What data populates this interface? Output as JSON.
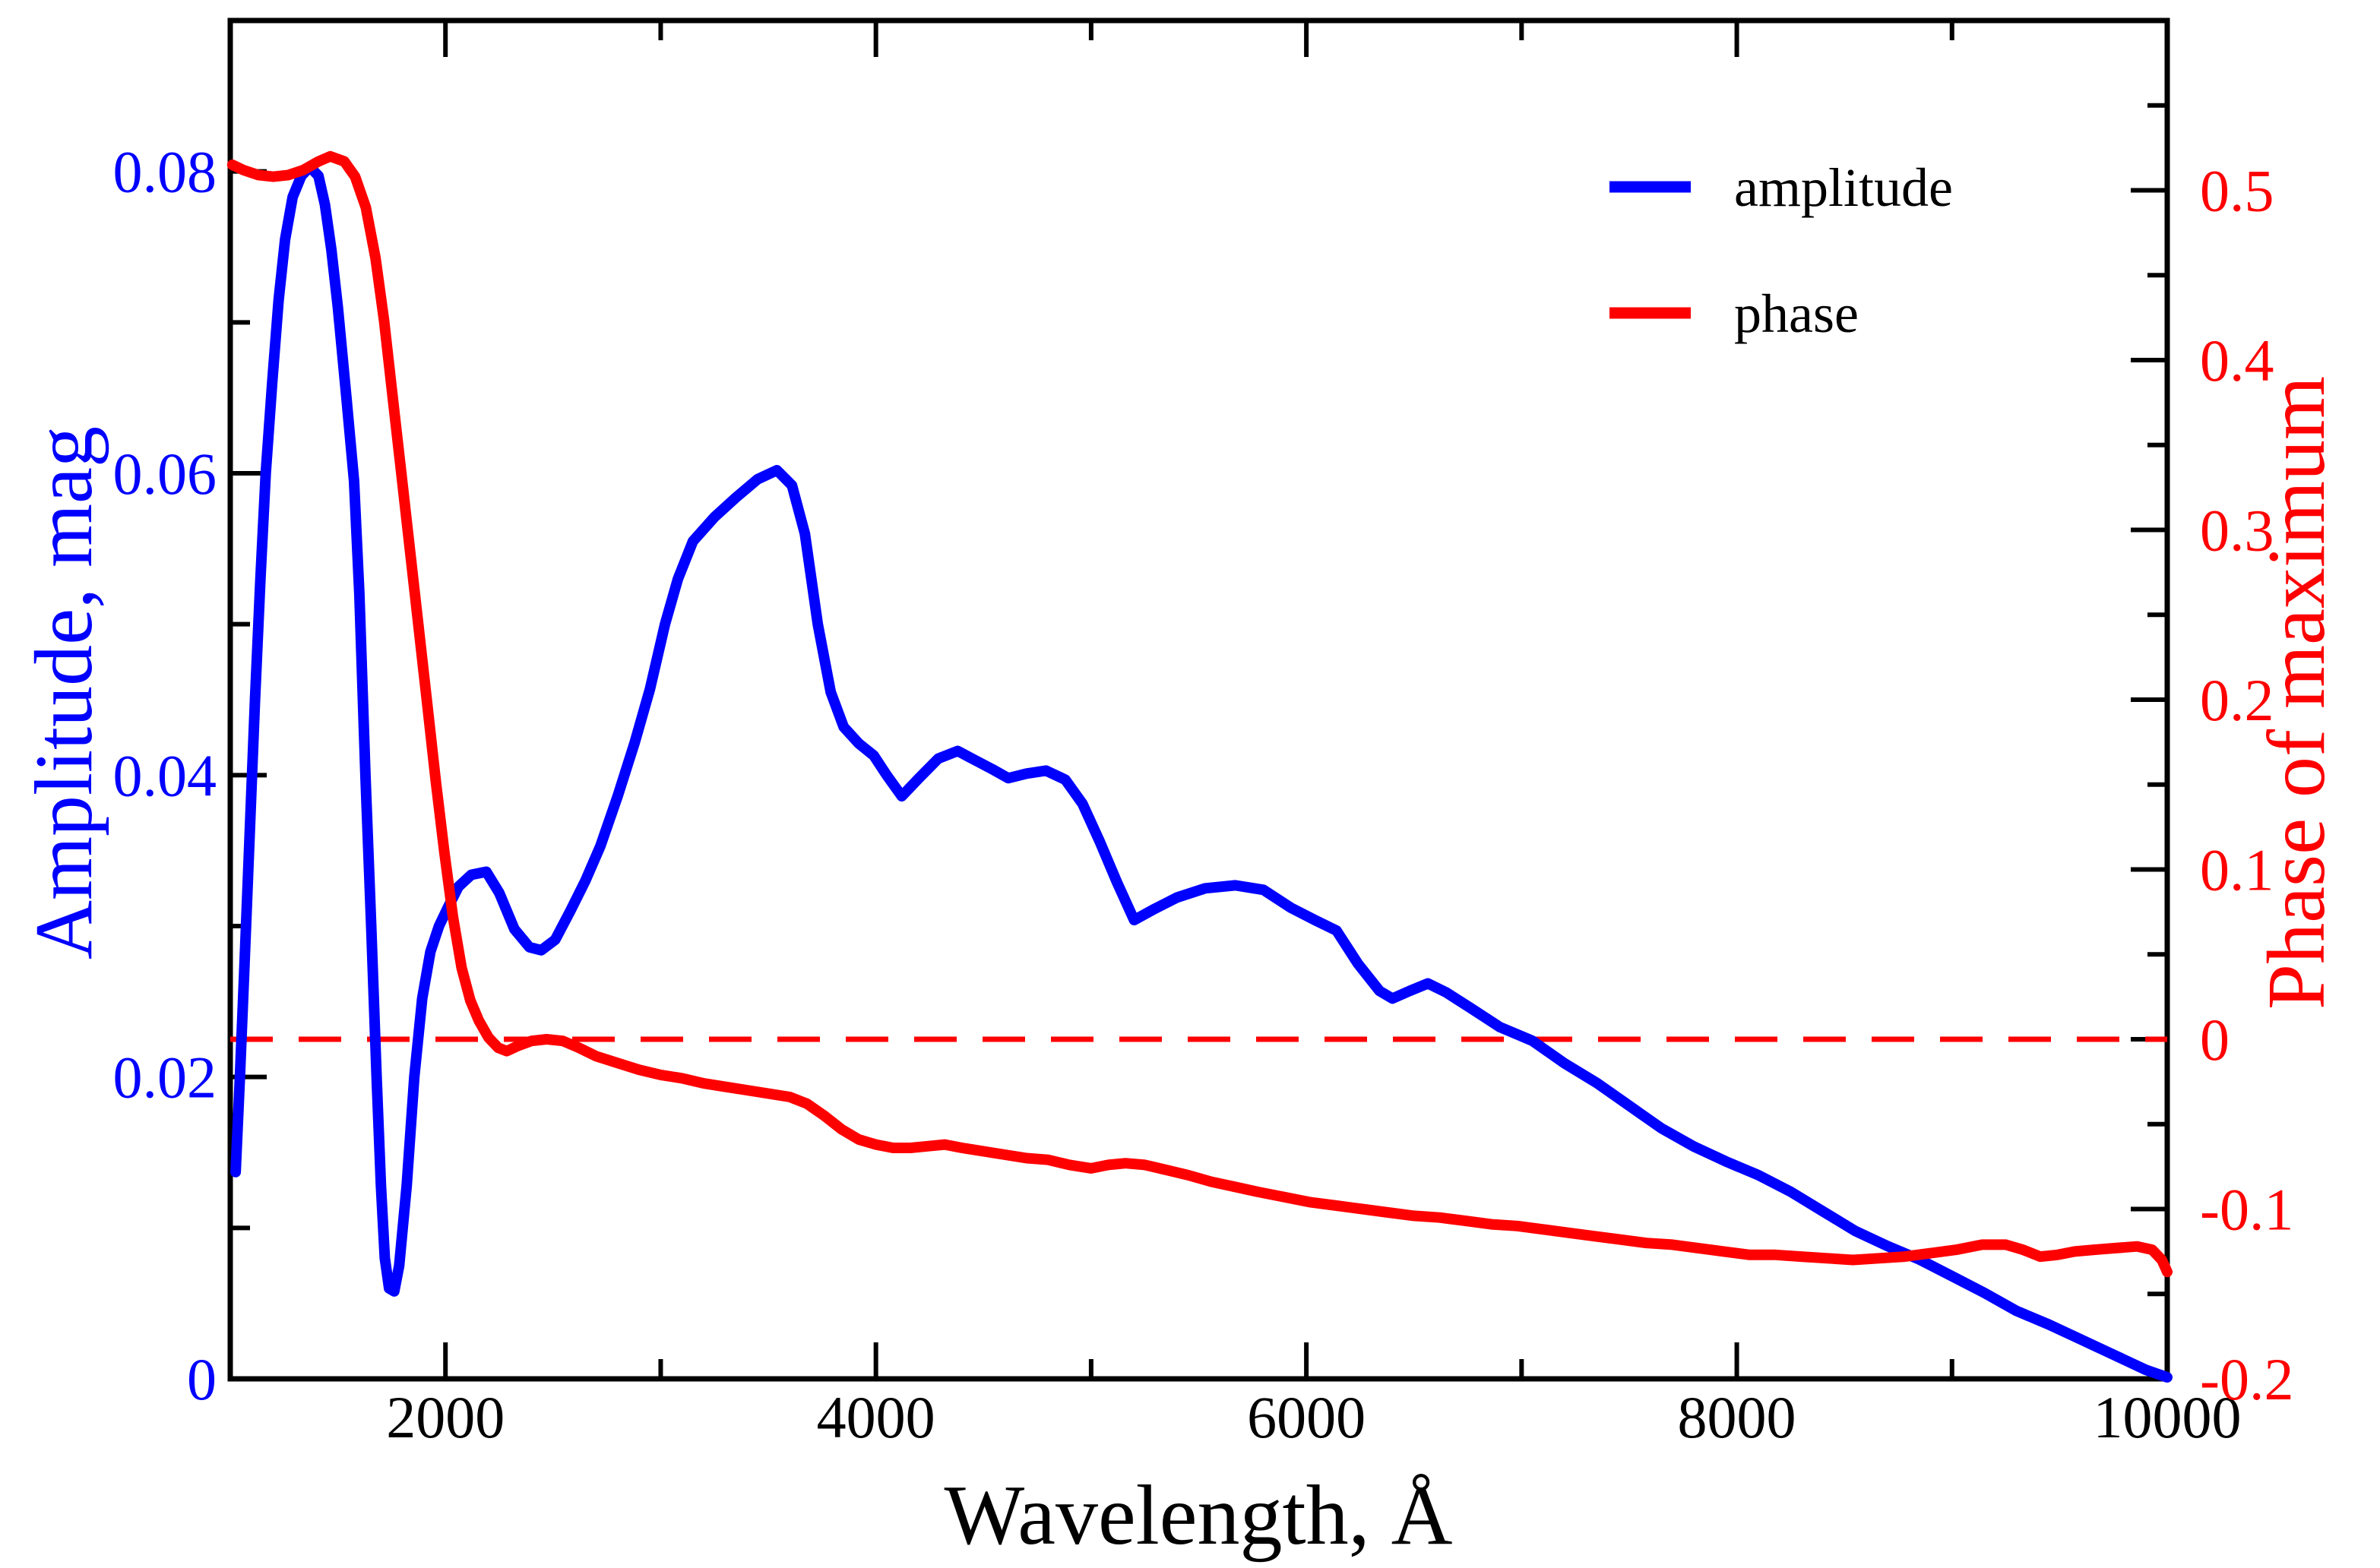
{
  "figure": {
    "background": "#ffffff",
    "frame_color": "#000000"
  },
  "legend": {
    "items": [
      {
        "label": "amplitude",
        "color": "#0000ff"
      },
      {
        "label": "phase",
        "color": "#ff0000"
      }
    ]
  },
  "chart_data": {
    "type": "line",
    "title": "",
    "xlabel": "Wavelength, Å",
    "ylabel_left": "Amplitude, mag",
    "ylabel_right": "Phase of maximum",
    "x_axis": {
      "range": [
        1000,
        10000
      ],
      "major_ticks": [
        2000,
        4000,
        6000,
        8000,
        10000
      ],
      "minor_ticks": [
        3000,
        5000,
        7000,
        9000
      ],
      "tick_labels": [
        "2000",
        "4000",
        "6000",
        "8000",
        "10000"
      ],
      "color": "#000000"
    },
    "y_axis_left": {
      "range": [
        0,
        0.09
      ],
      "major_ticks": [
        0,
        0.02,
        0.04,
        0.06,
        0.08
      ],
      "minor_ticks": [
        0.01,
        0.03,
        0.05,
        0.07
      ],
      "tick_labels": [
        "0",
        "0.02",
        "0.04",
        "0.06",
        "0.08"
      ],
      "color": "#0000ff"
    },
    "y_axis_right": {
      "range": [
        -0.2,
        0.6
      ],
      "major_ticks": [
        -0.2,
        -0.1,
        0,
        0.1,
        0.2,
        0.3,
        0.4,
        0.5
      ],
      "minor_ticks": [
        -0.15,
        -0.05,
        0.05,
        0.15,
        0.25,
        0.35,
        0.45,
        0.55
      ],
      "tick_labels": [
        "-0.2",
        "-0.1",
        "0",
        "0.1",
        "0.2",
        "0.3",
        "0.4",
        "0.5"
      ],
      "color": "#ff0000"
    },
    "reference_line": {
      "axis": "right",
      "value": 0,
      "style": "dashed",
      "color": "#ff0000"
    },
    "series": [
      {
        "name": "amplitude",
        "axis": "left",
        "color": "#0000ff",
        "points": [
          [
            1025,
            0.0137
          ],
          [
            1045,
            0.02
          ],
          [
            1065,
            0.027
          ],
          [
            1090,
            0.036
          ],
          [
            1115,
            0.045
          ],
          [
            1140,
            0.053
          ],
          [
            1165,
            0.06
          ],
          [
            1195,
            0.066
          ],
          [
            1225,
            0.0715
          ],
          [
            1255,
            0.0755
          ],
          [
            1290,
            0.0783
          ],
          [
            1330,
            0.0797
          ],
          [
            1370,
            0.0803
          ],
          [
            1410,
            0.0797
          ],
          [
            1440,
            0.0778
          ],
          [
            1470,
            0.0748
          ],
          [
            1500,
            0.071
          ],
          [
            1540,
            0.065
          ],
          [
            1575,
            0.0595
          ],
          [
            1600,
            0.052
          ],
          [
            1628,
            0.04
          ],
          [
            1655,
            0.03
          ],
          [
            1680,
            0.02
          ],
          [
            1700,
            0.0128
          ],
          [
            1718,
            0.008
          ],
          [
            1738,
            0.006
          ],
          [
            1762,
            0.0058
          ],
          [
            1785,
            0.0075
          ],
          [
            1820,
            0.0128
          ],
          [
            1855,
            0.02
          ],
          [
            1892,
            0.0252
          ],
          [
            1930,
            0.0283
          ],
          [
            1970,
            0.03
          ],
          [
            2010,
            0.0312
          ],
          [
            2060,
            0.0326
          ],
          [
            2120,
            0.0334
          ],
          [
            2190,
            0.0336
          ],
          [
            2250,
            0.0322
          ],
          [
            2320,
            0.0298
          ],
          [
            2390,
            0.0286
          ],
          [
            2445,
            0.0284
          ],
          [
            2510,
            0.0291
          ],
          [
            2580,
            0.031
          ],
          [
            2650,
            0.033
          ],
          [
            2720,
            0.0353
          ],
          [
            2800,
            0.0386
          ],
          [
            2880,
            0.0422
          ],
          [
            2950,
            0.0457
          ],
          [
            3020,
            0.05
          ],
          [
            3080,
            0.053
          ],
          [
            3150,
            0.0555
          ],
          [
            3250,
            0.0571
          ],
          [
            3350,
            0.0584
          ],
          [
            3450,
            0.0596
          ],
          [
            3540,
            0.0602
          ],
          [
            3610,
            0.0592
          ],
          [
            3670,
            0.056
          ],
          [
            3730,
            0.05
          ],
          [
            3790,
            0.0455
          ],
          [
            3850,
            0.0432
          ],
          [
            3920,
            0.0421
          ],
          [
            3990,
            0.0413
          ],
          [
            4050,
            0.04
          ],
          [
            4120,
            0.0386
          ],
          [
            4200,
            0.0398
          ],
          [
            4290,
            0.0411
          ],
          [
            4380,
            0.0416
          ],
          [
            4460,
            0.041
          ],
          [
            4540,
            0.0404
          ],
          [
            4615,
            0.0398
          ],
          [
            4700,
            0.0401
          ],
          [
            4790,
            0.0403
          ],
          [
            4880,
            0.0397
          ],
          [
            4960,
            0.0381
          ],
          [
            5040,
            0.0356
          ],
          [
            5120,
            0.0329
          ],
          [
            5200,
            0.0304
          ],
          [
            5290,
            0.0311
          ],
          [
            5400,
            0.0319
          ],
          [
            5530,
            0.0325
          ],
          [
            5670,
            0.0327
          ],
          [
            5800,
            0.0324
          ],
          [
            5930,
            0.0312
          ],
          [
            6040,
            0.0304
          ],
          [
            6140,
            0.0297
          ],
          [
            6240,
            0.0275
          ],
          [
            6340,
            0.0257
          ],
          [
            6400,
            0.0252
          ],
          [
            6480,
            0.0257
          ],
          [
            6565,
            0.0262
          ],
          [
            6650,
            0.0256
          ],
          [
            6760,
            0.0246
          ],
          [
            6900,
            0.0233
          ],
          [
            7050,
            0.0224
          ],
          [
            7200,
            0.0209
          ],
          [
            7350,
            0.0196
          ],
          [
            7500,
            0.0181
          ],
          [
            7650,
            0.0166
          ],
          [
            7800,
            0.0154
          ],
          [
            7950,
            0.0144
          ],
          [
            8100,
            0.0135
          ],
          [
            8250,
            0.0124
          ],
          [
            8400,
            0.0111
          ],
          [
            8550,
            0.0098
          ],
          [
            8700,
            0.0088
          ],
          [
            8850,
            0.0079
          ],
          [
            9000,
            0.0068
          ],
          [
            9150,
            0.0057
          ],
          [
            9300,
            0.0045
          ],
          [
            9450,
            0.0036
          ],
          [
            9600,
            0.0026
          ],
          [
            9750,
            0.0016
          ],
          [
            9900,
            0.0006
          ],
          [
            10000,
            0.0001
          ]
        ]
      },
      {
        "name": "phase",
        "axis": "right",
        "color": "#ff0000",
        "points": [
          [
            1010,
            0.515
          ],
          [
            1060,
            0.512
          ],
          [
            1130,
            0.509
          ],
          [
            1200,
            0.508
          ],
          [
            1270,
            0.509
          ],
          [
            1340,
            0.512
          ],
          [
            1410,
            0.517
          ],
          [
            1465,
            0.52
          ],
          [
            1530,
            0.517
          ],
          [
            1580,
            0.508
          ],
          [
            1630,
            0.49
          ],
          [
            1675,
            0.46
          ],
          [
            1715,
            0.423
          ],
          [
            1755,
            0.378
          ],
          [
            1795,
            0.333
          ],
          [
            1835,
            0.288
          ],
          [
            1875,
            0.243
          ],
          [
            1915,
            0.198
          ],
          [
            1955,
            0.152
          ],
          [
            1995,
            0.11
          ],
          [
            2035,
            0.072
          ],
          [
            2075,
            0.042
          ],
          [
            2115,
            0.023
          ],
          [
            2155,
            0.011
          ],
          [
            2200,
            0.001
          ],
          [
            2245,
            -0.005
          ],
          [
            2285,
            -0.007
          ],
          [
            2335,
            -0.004
          ],
          [
            2400,
            -0.001
          ],
          [
            2470,
            0.0
          ],
          [
            2545,
            -0.001
          ],
          [
            2620,
            -0.005
          ],
          [
            2700,
            -0.01
          ],
          [
            2800,
            -0.014
          ],
          [
            2900,
            -0.018
          ],
          [
            3000,
            -0.021
          ],
          [
            3100,
            -0.023
          ],
          [
            3200,
            -0.026
          ],
          [
            3300,
            -0.028
          ],
          [
            3400,
            -0.03
          ],
          [
            3500,
            -0.032
          ],
          [
            3600,
            -0.034
          ],
          [
            3680,
            -0.038
          ],
          [
            3760,
            -0.045
          ],
          [
            3840,
            -0.053
          ],
          [
            3920,
            -0.059
          ],
          [
            4000,
            -0.062
          ],
          [
            4080,
            -0.064
          ],
          [
            4160,
            -0.064
          ],
          [
            4240,
            -0.063
          ],
          [
            4320,
            -0.062
          ],
          [
            4400,
            -0.064
          ],
          [
            4500,
            -0.066
          ],
          [
            4600,
            -0.068
          ],
          [
            4700,
            -0.07
          ],
          [
            4800,
            -0.071
          ],
          [
            4900,
            -0.074
          ],
          [
            5000,
            -0.076
          ],
          [
            5080,
            -0.074
          ],
          [
            5160,
            -0.073
          ],
          [
            5250,
            -0.074
          ],
          [
            5350,
            -0.077
          ],
          [
            5450,
            -0.08
          ],
          [
            5560,
            -0.084
          ],
          [
            5670,
            -0.087
          ],
          [
            5780,
            -0.09
          ],
          [
            5900,
            -0.093
          ],
          [
            6020,
            -0.096
          ],
          [
            6140,
            -0.098
          ],
          [
            6260,
            -0.1
          ],
          [
            6380,
            -0.102
          ],
          [
            6500,
            -0.104
          ],
          [
            6620,
            -0.105
          ],
          [
            6740,
            -0.107
          ],
          [
            6860,
            -0.109
          ],
          [
            6980,
            -0.11
          ],
          [
            7100,
            -0.112
          ],
          [
            7220,
            -0.114
          ],
          [
            7340,
            -0.116
          ],
          [
            7460,
            -0.118
          ],
          [
            7580,
            -0.12
          ],
          [
            7700,
            -0.121
          ],
          [
            7820,
            -0.123
          ],
          [
            7940,
            -0.125
          ],
          [
            8060,
            -0.127
          ],
          [
            8180,
            -0.127
          ],
          [
            8300,
            -0.128
          ],
          [
            8420,
            -0.129
          ],
          [
            8540,
            -0.13
          ],
          [
            8660,
            -0.129
          ],
          [
            8780,
            -0.128
          ],
          [
            8900,
            -0.126
          ],
          [
            9020,
            -0.124
          ],
          [
            9140,
            -0.121
          ],
          [
            9250,
            -0.121
          ],
          [
            9330,
            -0.124
          ],
          [
            9410,
            -0.128
          ],
          [
            9490,
            -0.127
          ],
          [
            9570,
            -0.125
          ],
          [
            9660,
            -0.124
          ],
          [
            9760,
            -0.123
          ],
          [
            9860,
            -0.122
          ],
          [
            9930,
            -0.124
          ],
          [
            9975,
            -0.13
          ],
          [
            10000,
            -0.137
          ]
        ]
      }
    ]
  }
}
